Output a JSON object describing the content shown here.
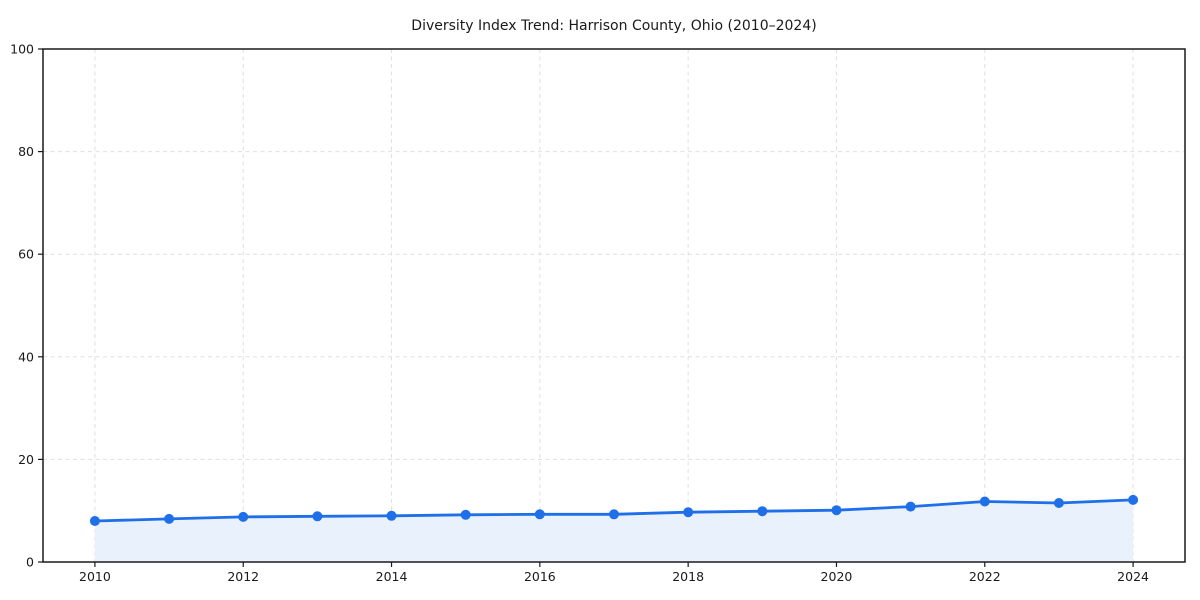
{
  "figure": {
    "title": "Diversity Index Trend: Harrison County, Ohio (2010–2024)"
  },
  "chart_data": {
    "type": "line",
    "title": "Diversity Index Trend: Harrison County, Ohio (2010–2024)",
    "x": [
      2010,
      2011,
      2012,
      2013,
      2014,
      2015,
      2016,
      2017,
      2018,
      2019,
      2020,
      2021,
      2022,
      2023,
      2024
    ],
    "series": [
      {
        "name": "Diversity Index",
        "values": [
          8.0,
          8.4,
          8.8,
          8.9,
          9.0,
          9.2,
          9.3,
          9.3,
          9.7,
          9.9,
          10.1,
          10.8,
          11.8,
          11.5,
          12.1
        ]
      }
    ],
    "xlabel": "",
    "ylabel": "",
    "xlim": [
      2009.3,
      2024.7
    ],
    "ylim": [
      0,
      100
    ],
    "xticks": [
      2010,
      2012,
      2014,
      2016,
      2018,
      2020,
      2022,
      2024
    ],
    "yticks": [
      0,
      20,
      40,
      60,
      80,
      100
    ],
    "grid": true,
    "grid_style": "dashed",
    "legend": "none",
    "marker": "circle",
    "area_fill": true,
    "colors": {
      "line": "#1f6fe8",
      "fill": "#e9f1fd",
      "grid": "#e0e0e0",
      "axis": "#1a1a1a",
      "text": "#1a1a1a",
      "background": "#ffffff"
    }
  }
}
